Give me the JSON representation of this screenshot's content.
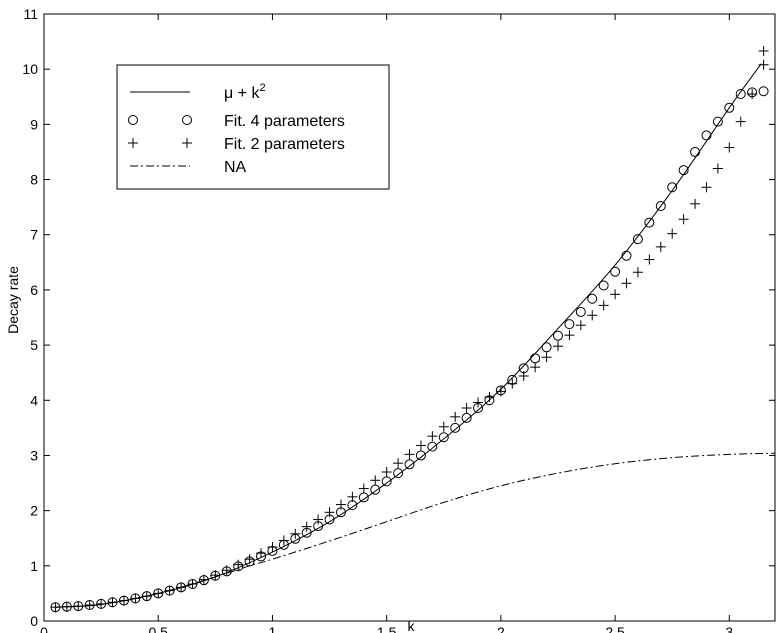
{
  "chart_data": {
    "type": "line",
    "title": "",
    "xlabel": "k",
    "ylabel": "Decay rate",
    "xlim": [
      0,
      3.2
    ],
    "ylim": [
      0,
      11
    ],
    "xticks": [
      0,
      0.5,
      1,
      1.5,
      2,
      2.5,
      3
    ],
    "xtick_labels": [
      "0",
      "0.5",
      "1",
      "1.5",
      "2",
      "2.5",
      "3"
    ],
    "yticks": [
      0,
      1,
      2,
      3,
      4,
      5,
      6,
      7,
      8,
      9,
      10,
      11
    ],
    "ytick_labels": [
      "0",
      "1",
      "2",
      "3",
      "4",
      "5",
      "6",
      "7",
      "8",
      "9",
      "10",
      "11"
    ],
    "grid": false,
    "legend_position": "top-left",
    "series": [
      {
        "name": "μ + k²",
        "legend_main": "μ + k",
        "legend_sup": "2",
        "style": "solid",
        "color": "#000000",
        "x": [
          0.05,
          0.25,
          0.5,
          0.75,
          1.0,
          1.25,
          1.5,
          1.75,
          2.0,
          2.25,
          2.5,
          2.75,
          3.0,
          3.14
        ],
        "y": [
          0.25,
          0.3,
          0.5,
          0.8,
          1.25,
          1.8,
          2.5,
          3.3,
          4.2,
          5.3,
          6.45,
          7.8,
          9.3,
          10.1
        ]
      },
      {
        "name": "Fit. 4 parameters",
        "style": "circle",
        "color": "#000000",
        "x": [
          0.05,
          0.1,
          0.15,
          0.2,
          0.25,
          0.3,
          0.35,
          0.4,
          0.45,
          0.5,
          0.55,
          0.6,
          0.65,
          0.7,
          0.75,
          0.8,
          0.85,
          0.9,
          0.95,
          1.0,
          1.05,
          1.1,
          1.15,
          1.2,
          1.25,
          1.3,
          1.35,
          1.4,
          1.45,
          1.5,
          1.55,
          1.6,
          1.65,
          1.7,
          1.75,
          1.8,
          1.85,
          1.9,
          1.95,
          2.0,
          2.05,
          2.1,
          2.15,
          2.2,
          2.25,
          2.3,
          2.35,
          2.4,
          2.45,
          2.5,
          2.55,
          2.6,
          2.65,
          2.7,
          2.75,
          2.8,
          2.85,
          2.9,
          2.95,
          3.0,
          3.05,
          3.1,
          3.15
        ],
        "y": [
          0.25,
          0.26,
          0.27,
          0.29,
          0.31,
          0.34,
          0.37,
          0.41,
          0.45,
          0.5,
          0.55,
          0.61,
          0.67,
          0.74,
          0.82,
          0.9,
          0.99,
          1.08,
          1.17,
          1.27,
          1.38,
          1.49,
          1.6,
          1.72,
          1.84,
          1.97,
          2.1,
          2.24,
          2.38,
          2.53,
          2.68,
          2.84,
          3.0,
          3.16,
          3.33,
          3.5,
          3.68,
          3.86,
          4.0,
          4.18,
          4.37,
          4.58,
          4.76,
          4.96,
          5.17,
          5.38,
          5.6,
          5.84,
          6.08,
          6.33,
          6.62,
          6.92,
          7.22,
          7.52,
          7.86,
          8.17,
          8.5,
          8.8,
          9.05,
          9.3,
          9.55,
          9.58,
          9.6
        ]
      },
      {
        "name": "Fit. 2 parameters",
        "style": "plus",
        "color": "#000000",
        "x": [
          0.05,
          0.1,
          0.15,
          0.2,
          0.25,
          0.3,
          0.35,
          0.4,
          0.45,
          0.5,
          0.55,
          0.6,
          0.65,
          0.7,
          0.75,
          0.8,
          0.85,
          0.9,
          0.95,
          1.0,
          1.05,
          1.1,
          1.15,
          1.2,
          1.25,
          1.3,
          1.35,
          1.4,
          1.45,
          1.5,
          1.55,
          1.6,
          1.65,
          1.7,
          1.75,
          1.8,
          1.85,
          1.9,
          1.95,
          2.0,
          2.05,
          2.1,
          2.15,
          2.2,
          2.25,
          2.3,
          2.35,
          2.4,
          2.45,
          2.5,
          2.55,
          2.6,
          2.65,
          2.7,
          2.75,
          2.8,
          2.85,
          2.9,
          2.95,
          3.0,
          3.05,
          3.1,
          3.15
        ],
        "y": [
          0.25,
          0.26,
          0.27,
          0.29,
          0.31,
          0.34,
          0.37,
          0.41,
          0.45,
          0.5,
          0.55,
          0.61,
          0.67,
          0.75,
          0.83,
          0.92,
          1.02,
          1.12,
          1.23,
          1.34,
          1.46,
          1.58,
          1.71,
          1.84,
          1.97,
          2.11,
          2.25,
          2.4,
          2.55,
          2.7,
          2.86,
          3.02,
          3.18,
          3.35,
          3.52,
          3.7,
          3.86,
          3.96,
          4.06,
          4.16,
          4.3,
          4.44,
          4.6,
          4.78,
          4.98,
          5.18,
          5.36,
          5.54,
          5.72,
          5.92,
          6.12,
          6.32,
          6.55,
          6.78,
          7.02,
          7.28,
          7.56,
          7.86,
          8.2,
          8.58,
          9.05,
          9.55,
          10.08
        ],
        "extra_points": [
          [
            3.15,
            10.33
          ]
        ]
      },
      {
        "name": "NA",
        "style": "dashdot",
        "color": "#000000",
        "x": [
          0.05,
          0.25,
          0.5,
          0.75,
          0.9,
          1.0,
          1.25,
          1.5,
          1.75,
          2.0,
          2.25,
          2.5,
          2.75,
          3.0,
          3.2
        ],
        "y": [
          0.25,
          0.3,
          0.5,
          0.8,
          1.0,
          1.12,
          1.45,
          1.8,
          2.15,
          2.45,
          2.68,
          2.85,
          2.96,
          3.02,
          3.04
        ]
      }
    ]
  }
}
